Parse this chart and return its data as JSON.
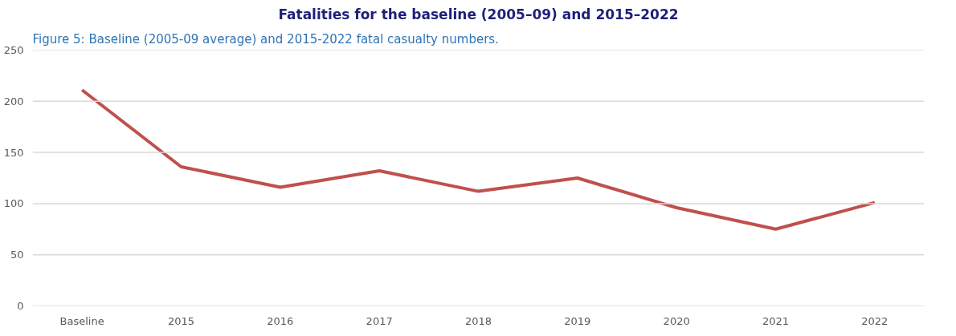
{
  "chart_data": {
    "type": "line",
    "title": "Fatalities for the baseline (2005–09) and 2015–2022",
    "annotations": [
      "Figure 5: Baseline (2005-09 average) and 2015-2022 fatal casualty numbers."
    ],
    "categories": [
      "Baseline",
      "2015",
      "2016",
      "2017",
      "2018",
      "2019",
      "2020",
      "2021",
      "2022"
    ],
    "series": [
      {
        "color": "#c0504d",
        "values": [
          211,
          136,
          116,
          132,
          112,
          125,
          96,
          75,
          101
        ]
      }
    ],
    "ylim": [
      0,
      250
    ],
    "yticks": [
      0,
      50,
      100,
      150,
      200,
      250
    ],
    "grid": "y",
    "marker": "none",
    "line_style": "solid"
  }
}
